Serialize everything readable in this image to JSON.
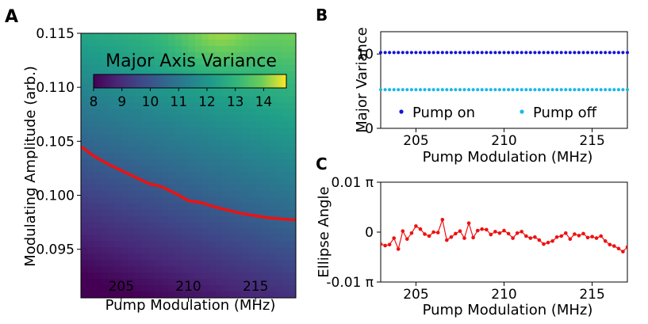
{
  "panel_letters": {
    "a": "A",
    "b": "B",
    "c": "C"
  },
  "colorbar": {
    "title": "Major Axis Variance",
    "ticks": [
      "8",
      "9",
      "10",
      "11",
      "12",
      "13",
      "14"
    ],
    "range": [
      8,
      14.8
    ],
    "colormap": "viridis"
  },
  "chart_data": [
    {
      "id": "A",
      "type": "heatmap",
      "xlabel": "Pump Modulation (MHz)",
      "ylabel": "Modulating Amplitude (arb.)",
      "xlim": [
        202,
        218
      ],
      "ylim": [
        0.0905,
        0.115
      ],
      "xticks": [
        "205",
        "210",
        "215"
      ],
      "yticks": [
        "0.095",
        "0.100",
        "0.105",
        "0.110",
        "0.115"
      ],
      "colormap": "viridis",
      "z_range": [
        8,
        14.8
      ],
      "series": [
        {
          "x": [
            202,
            203,
            204,
            205,
            206,
            207,
            208,
            209,
            210,
            211,
            212,
            213,
            214,
            215,
            216,
            217,
            218
          ],
          "y": [
            0.1045,
            0.1036,
            0.1029,
            0.1023,
            0.1017,
            0.1011,
            0.1008,
            0.1002,
            0.0995,
            0.0993,
            0.0989,
            0.0986,
            0.0983,
            0.0981,
            0.0979,
            0.0978,
            0.0977
          ],
          "color": "#ee1111"
        }
      ]
    },
    {
      "id": "B",
      "type": "scatter",
      "xlabel": "Pump Modulation (MHz)",
      "ylabel": "Major Variance",
      "xlim": [
        203,
        217
      ],
      "ylim": [
        0,
        13
      ],
      "xticks": [
        "205",
        "210",
        "215"
      ],
      "yticks": [
        "0",
        "10"
      ],
      "legend": "bottom",
      "series": [
        {
          "name": "Pump on",
          "color": "#1515d6",
          "y_constant": 10.2,
          "x_start": 203,
          "x_end": 217,
          "x_step": 0.25
        },
        {
          "name": "Pump off",
          "color": "#1ab8ea",
          "y_constant": 5.2,
          "x_start": 203,
          "x_end": 217,
          "x_step": 0.25
        }
      ]
    },
    {
      "id": "C",
      "type": "line",
      "xlabel": "Pump Modulation (MHz)",
      "ylabel": "Ellipse Angle",
      "xlim": [
        203,
        217
      ],
      "ylim": [
        -0.01,
        0.01
      ],
      "ytick_labels": [
        "0.01 π",
        "0",
        "-0.01 π"
      ],
      "xticks": [
        "205",
        "210",
        "215"
      ],
      "series": [
        {
          "color": "#ee1111",
          "x": [
            203,
            203.25,
            203.5,
            203.75,
            204,
            204.25,
            204.5,
            204.75,
            205,
            205.25,
            205.5,
            205.75,
            206,
            206.25,
            206.5,
            206.75,
            207,
            207.25,
            207.5,
            207.75,
            208,
            208.25,
            208.5,
            208.75,
            209,
            209.25,
            209.5,
            209.75,
            210,
            210.25,
            210.5,
            210.75,
            211,
            211.25,
            211.5,
            211.75,
            212,
            212.25,
            212.5,
            212.75,
            213,
            213.25,
            213.5,
            213.75,
            214,
            214.25,
            214.5,
            214.75,
            215,
            215.25,
            215.5,
            215.75,
            216,
            216.25,
            216.5,
            216.75,
            217
          ],
          "y": [
            -0.0024,
            -0.0027,
            -0.0025,
            -0.0012,
            -0.0034,
            0.0002,
            -0.0014,
            -0.0002,
            0.0012,
            0.0006,
            -0.0004,
            -0.0008,
            0.0,
            -0.0001,
            0.0025,
            -0.0016,
            -0.001,
            -0.0003,
            0.0002,
            -0.0012,
            0.0018,
            -0.0011,
            0.0003,
            0.0006,
            0.0005,
            -0.0005,
            0.0001,
            -0.0002,
            0.0003,
            -0.0003,
            -0.0012,
            -0.0002,
            0.0001,
            -0.0008,
            -0.0012,
            -0.001,
            -0.0016,
            -0.0024,
            -0.0021,
            -0.0018,
            -0.001,
            -0.0008,
            -0.0002,
            -0.0014,
            -0.0004,
            -0.0007,
            -0.0003,
            -0.0011,
            -0.0009,
            -0.0012,
            -0.0008,
            -0.0018,
            -0.0025,
            -0.0028,
            -0.0033,
            -0.0039,
            -0.003
          ]
        }
      ]
    }
  ]
}
